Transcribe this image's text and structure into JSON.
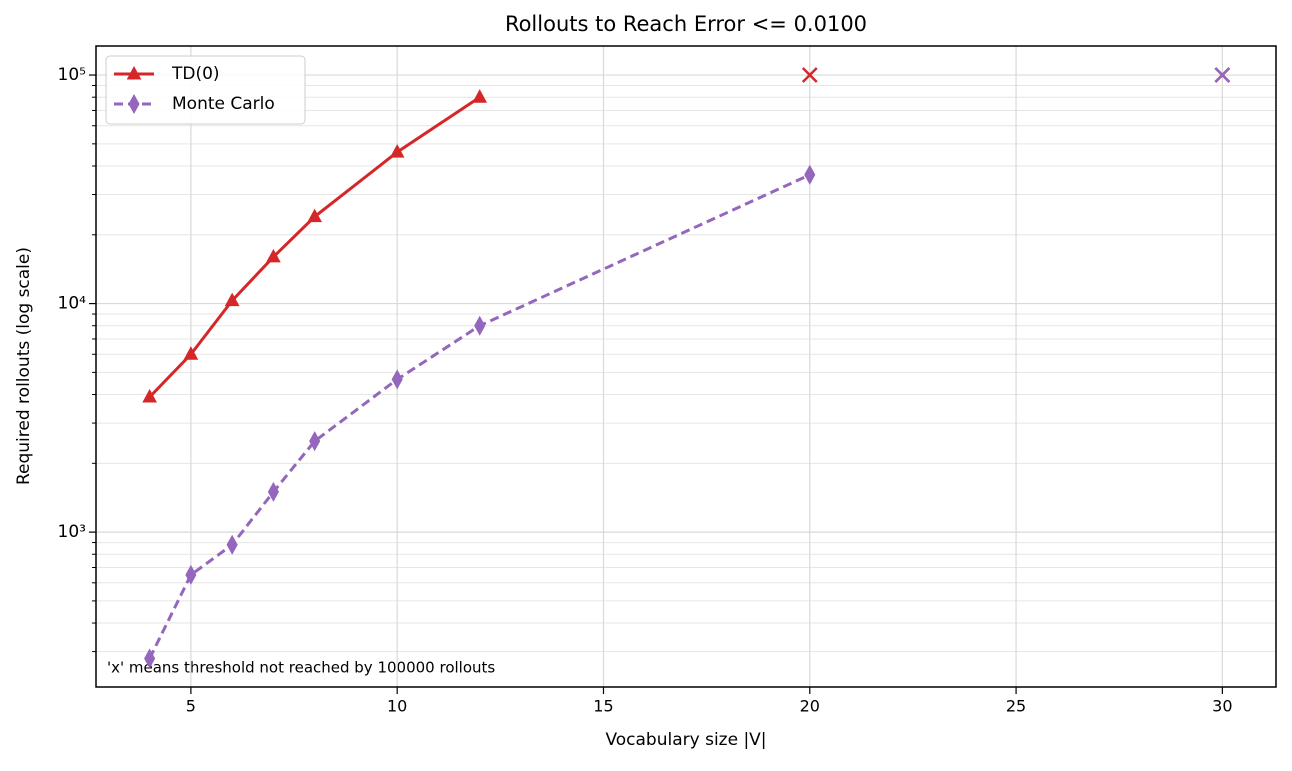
{
  "chart_data": {
    "type": "line",
    "title": "Rollouts to Reach Error <= 0.0100",
    "x_label": "Vocabulary size |V|",
    "y_label": "Required rollouts (log scale)",
    "annotation": "'x' means threshold not reached by 100000 rollouts",
    "log_y": true,
    "grid": true,
    "legend": "upper left",
    "xlim": [
      2.7,
      31.3
    ],
    "xticks": [
      5,
      10,
      15,
      20,
      25,
      30
    ],
    "ylim": [
      210,
      134000
    ],
    "yticks": [
      {
        "value": 1000,
        "label": "10³"
      },
      {
        "value": 10000,
        "label": "10⁴"
      },
      {
        "value": 100000,
        "label": "10⁵"
      }
    ],
    "yminor": [
      300,
      400,
      500,
      600,
      700,
      800,
      900,
      2000,
      3000,
      4000,
      5000,
      6000,
      7000,
      8000,
      9000,
      20000,
      30000,
      40000,
      50000,
      60000,
      70000,
      80000,
      90000
    ],
    "not_reached_value": 100000,
    "series": [
      {
        "name": "TD(0)",
        "color": "#d62728",
        "marker": "triangle",
        "dashed": false,
        "x": [
          4,
          5,
          6,
          7,
          8,
          10,
          12
        ],
        "values": [
          3900,
          6000,
          10300,
          16000,
          24000,
          46000,
          80000
        ],
        "not_reached_x": [
          20,
          30
        ]
      },
      {
        "name": "Monte Carlo",
        "color": "#9467bd",
        "marker": "diamond",
        "dashed": true,
        "x": [
          4,
          5,
          6,
          7,
          8,
          10,
          12,
          20
        ],
        "values": [
          280,
          650,
          880,
          1500,
          2500,
          4660,
          8000,
          36600
        ],
        "not_reached_x": [
          30
        ]
      }
    ]
  }
}
